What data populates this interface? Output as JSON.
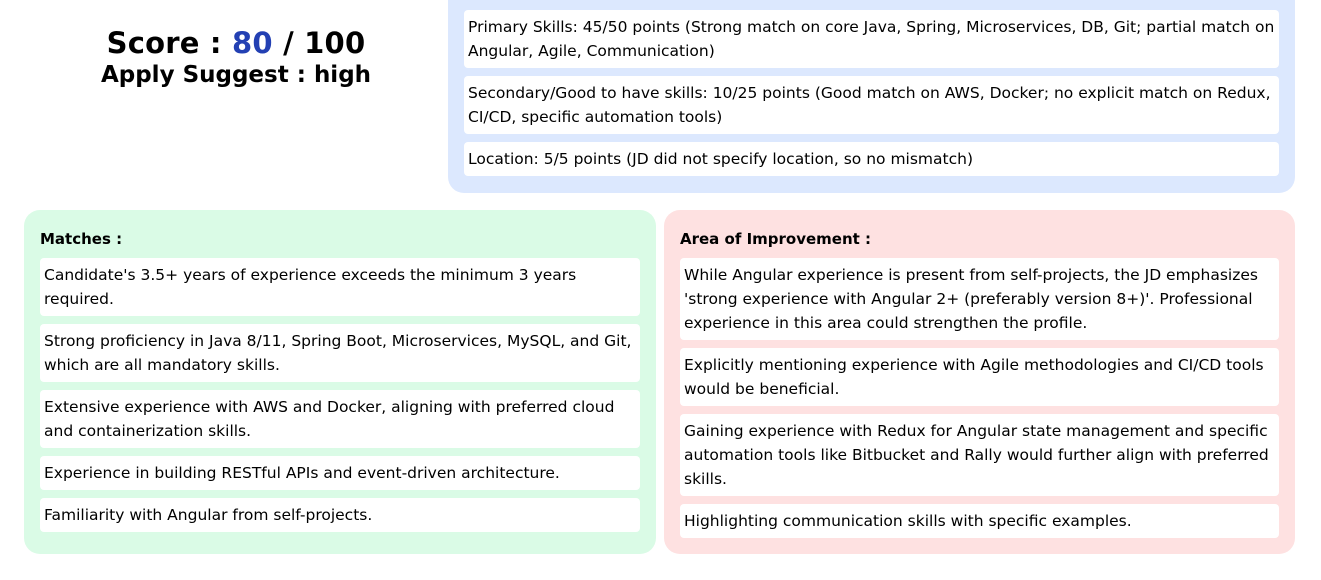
{
  "summary": {
    "score_label": "Score :",
    "score_value": "80",
    "score_total": "/ 100",
    "apply_label": "Apply Suggest :",
    "apply_value": "high",
    "score_color": "#2340b3"
  },
  "breakdown": {
    "items": [
      "Primary Skills: 45/50 points (Strong match on core Java, Spring, Microservices, DB, Git; partial match on Angular, Agile, Communication)",
      "Secondary/Good to have skills: 10/25 points (Good match on AWS, Docker; no explicit match on Redux, CI/CD, specific automation tools)",
      "Location: 5/5 points (JD did not specify location, so no mismatch)"
    ]
  },
  "matches": {
    "title": "Matches :",
    "items": [
      "Candidate's 3.5+ years of experience exceeds the minimum 3 years required.",
      "Strong proficiency in Java 8/11, Spring Boot, Microservices, MySQL, and Git, which are all mandatory skills.",
      "Extensive experience with AWS and Docker, aligning with preferred cloud and containerization skills.",
      "Experience in building RESTful APIs and event-driven architecture.",
      "Familiarity with Angular from self-projects."
    ]
  },
  "improvement": {
    "title": "Area of Improvement :",
    "items": [
      "While Angular experience is present from self-projects, the JD emphasizes 'strong experience with Angular 2+ (preferably version 8+)'. Professional experience in this area could strengthen the profile.",
      "Explicitly mentioning experience with Agile methodologies and CI/CD tools would be beneficial.",
      "Gaining experience with Redux for Angular state management and specific automation tools like Bitbucket and Rally would further align with preferred skills.",
      "Highlighting communication skills with specific examples."
    ]
  },
  "colors": {
    "breakdown_bg": "#dce8fe",
    "matches_bg": "#dafbe6",
    "improvement_bg": "#fee1e1"
  }
}
